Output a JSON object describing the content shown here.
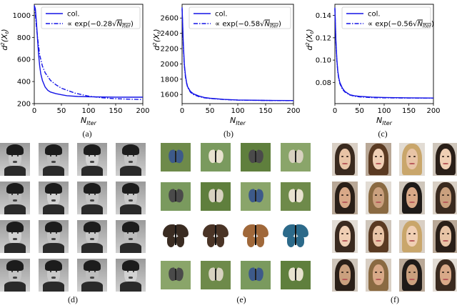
{
  "chart_data": [
    {
      "type": "line",
      "panel": "(a)",
      "ylabel": "d²(X_t)",
      "xlabel": "N_Iter",
      "xlim": [
        0,
        200
      ],
      "ylim": [
        200,
        1100
      ],
      "xticks": [
        0,
        50,
        100,
        150,
        200
      ],
      "yticks": [
        200,
        400,
        600,
        800,
        1000
      ],
      "legend": "top-right",
      "series": [
        {
          "name": "col.",
          "style": "solid",
          "x": [
            0,
            2,
            4,
            6,
            8,
            10,
            12,
            15,
            20,
            25,
            30,
            40,
            50,
            60,
            80,
            100,
            125,
            150,
            175,
            200
          ],
          "y": [
            1090,
            1060,
            940,
            780,
            640,
            540,
            470,
            410,
            350,
            320,
            305,
            290,
            280,
            272,
            265,
            262,
            260,
            259,
            258,
            258
          ]
        },
        {
          "name": "∝ exp(−0.28√N_Iter)",
          "style": "dashdot",
          "x": [
            0,
            2,
            4,
            6,
            8,
            10,
            15,
            20,
            30,
            40,
            50,
            75,
            100,
            125,
            150,
            175,
            200
          ],
          "y": [
            1080,
            1010,
            900,
            800,
            720,
            640,
            540,
            480,
            410,
            370,
            340,
            295,
            268,
            253,
            245,
            240,
            237
          ]
        }
      ]
    },
    {
      "type": "line",
      "panel": "(b)",
      "ylabel": "d²(X_t)",
      "xlabel": "N_Iter",
      "xlim": [
        0,
        200
      ],
      "ylim": [
        1480,
        2780
      ],
      "xticks": [
        0,
        50,
        100,
        150,
        200
      ],
      "yticks": [
        1600,
        1800,
        2000,
        2200,
        2400,
        2600
      ],
      "legend": "top-right",
      "series": [
        {
          "name": "col.",
          "style": "solid",
          "x": [
            0,
            2,
            4,
            6,
            8,
            10,
            15,
            20,
            30,
            40,
            50,
            75,
            100,
            150,
            200
          ],
          "y": [
            2740,
            2300,
            2000,
            1850,
            1760,
            1700,
            1640,
            1610,
            1580,
            1560,
            1550,
            1535,
            1528,
            1522,
            1520
          ]
        },
        {
          "name": "∝ exp(−0.58√N_Iter)",
          "style": "dashdot",
          "x": [
            0,
            2,
            4,
            6,
            8,
            10,
            15,
            20,
            30,
            40,
            50,
            75,
            100,
            150,
            200
          ],
          "y": [
            2720,
            2250,
            1980,
            1830,
            1750,
            1690,
            1630,
            1600,
            1572,
            1556,
            1547,
            1533,
            1526,
            1521,
            1519
          ]
        }
      ]
    },
    {
      "type": "line",
      "panel": "(c)",
      "ylabel": "d²(X_t)",
      "xlabel": "N_Iter",
      "xlim": [
        0,
        200
      ],
      "ylim": [
        0.061,
        0.15
      ],
      "xticks": [
        0,
        50,
        100,
        150,
        200
      ],
      "yticks": [
        0.08,
        0.1,
        0.12,
        0.14
      ],
      "ytickLabels": [
        "0.08",
        "0.10",
        "0.12",
        "0.14"
      ],
      "legend": "top-right",
      "series": [
        {
          "name": "col.",
          "style": "solid",
          "x": [
            0,
            2,
            4,
            6,
            8,
            10,
            15,
            20,
            30,
            40,
            50,
            75,
            100,
            150,
            200
          ],
          "y": [
            0.147,
            0.118,
            0.1,
            0.09,
            0.084,
            0.08,
            0.075,
            0.072,
            0.069,
            0.068,
            0.0675,
            0.0668,
            0.0665,
            0.0662,
            0.066
          ]
        },
        {
          "name": "∝ exp(−0.56√N_Iter)",
          "style": "dashdot",
          "x": [
            0,
            2,
            4,
            6,
            8,
            10,
            15,
            20,
            30,
            40,
            50,
            75,
            100,
            150,
            200
          ],
          "y": [
            0.146,
            0.116,
            0.099,
            0.089,
            0.083,
            0.079,
            0.074,
            0.0715,
            0.0688,
            0.0676,
            0.067,
            0.0664,
            0.0662,
            0.066,
            0.0659
          ]
        }
      ]
    }
  ],
  "captions": {
    "a": "(a)",
    "b": "(b)",
    "c": "(c)",
    "d": "(d)",
    "e": "(e)",
    "f": "(f)"
  },
  "colors": {
    "line": "#1414e6",
    "axis": "#000000"
  },
  "image_grids": {
    "d": "grayscale face photographs, 4×4 grid",
    "e": "butterfly photographs, 4×4 grid",
    "f": "celebrity face photographs, 4×4 grid"
  }
}
